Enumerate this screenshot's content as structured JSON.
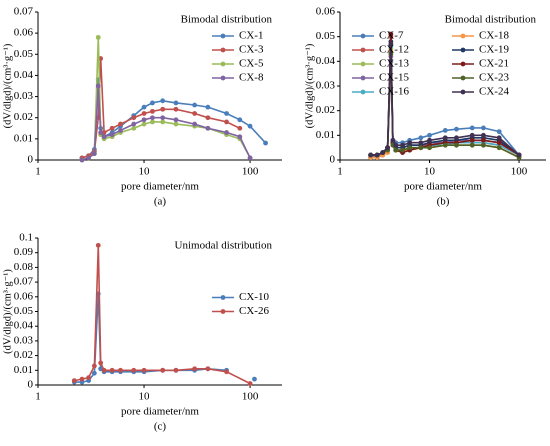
{
  "chart_data": [
    {
      "type": "line",
      "annotation": "Bimodal distribution",
      "xlabel": "pore diameter/nm",
      "ylabel": "(dV/dlgd)/(cm³·g⁻¹)",
      "caption": "(a)",
      "log_x": true,
      "xlim": [
        1,
        200
      ],
      "xticks": [
        1,
        10,
        100
      ],
      "ylim": [
        0,
        0.07
      ],
      "yticks": [
        0,
        0.01,
        0.02,
        0.03,
        0.04,
        0.05,
        0.06,
        0.07
      ],
      "legend": "upper right",
      "x": [
        2.6,
        3,
        3.4,
        3.7,
        3.9,
        4.2,
        5,
        6,
        8,
        10,
        12,
        15,
        20,
        30,
        40,
        60,
        80,
        100,
        140
      ],
      "series": [
        {
          "name": "CX-1",
          "color": "#4a7ebb",
          "values": [
            0.001,
            0.002,
            0.005,
            0.038,
            0.015,
            0.011,
            0.013,
            0.016,
            0.021,
            0.025,
            0.027,
            0.028,
            0.027,
            0.026,
            0.025,
            0.022,
            0.019,
            0.016,
            0.008
          ]
        },
        {
          "name": "CX-3",
          "color": "#c0504d",
          "values": [
            0.001,
            0.002,
            0.004,
            0.02,
            0.048,
            0.013,
            0.015,
            0.017,
            0.02,
            0.022,
            0.023,
            0.024,
            0.024,
            0.022,
            0.02,
            0.018,
            0.015,
            null,
            null
          ]
        },
        {
          "name": "CX-5",
          "color": "#9bbb59",
          "values": [
            0,
            0.001,
            0.003,
            0.058,
            0.012,
            0.01,
            0.011,
            0.013,
            0.015,
            0.017,
            0.018,
            0.018,
            0.017,
            0.016,
            0.015,
            0.012,
            0.01,
            0.001,
            null
          ]
        },
        {
          "name": "CX-8",
          "color": "#8064a2",
          "values": [
            0,
            0.001,
            0.003,
            0.035,
            0.013,
            0.011,
            0.012,
            0.014,
            0.017,
            0.019,
            0.02,
            0.02,
            0.019,
            0.017,
            0.015,
            0.013,
            0.011,
            0.001,
            null
          ]
        }
      ]
    },
    {
      "type": "line",
      "annotation": "Bimodal distribution",
      "xlabel": "pore diameter/nm",
      "ylabel": "(dV/dlgd)/(cm³·g⁻¹)",
      "caption": "(b)",
      "log_x": true,
      "xlim": [
        1,
        200
      ],
      "xticks": [
        1,
        10,
        100
      ],
      "ylim": [
        0,
        0.06
      ],
      "yticks": [
        0,
        0.01,
        0.02,
        0.03,
        0.04,
        0.05,
        0.06
      ],
      "legend": "upper right",
      "x": [
        2.2,
        2.6,
        3,
        3.4,
        3.7,
        3.9,
        4.2,
        5,
        6,
        8,
        10,
        15,
        20,
        30,
        40,
        60,
        100
      ],
      "series": [
        {
          "name": "CX-7",
          "color": "#4a7ebb",
          "values": [
            0.001,
            0.002,
            0.003,
            0.005,
            0.04,
            0.008,
            0.007,
            0.007,
            0.008,
            0.009,
            0.01,
            0.012,
            0.0125,
            0.013,
            0.013,
            0.0115,
            0.002
          ]
        },
        {
          "name": "CX-12",
          "color": "#c0504d",
          "values": [
            0.001,
            0.001,
            0.002,
            0.004,
            0.05,
            0.007,
            0.005,
            0.005,
            0.006,
            0.006,
            0.006,
            0.007,
            0.007,
            0.007,
            0.007,
            0.006,
            0.002
          ]
        },
        {
          "name": "CX-13",
          "color": "#9bbb59",
          "values": [
            0.001,
            0.001,
            0.002,
            0.004,
            0.045,
            0.006,
            0.004,
            0.004,
            0.004,
            0.005,
            0.005,
            0.006,
            0.006,
            0.006,
            0.006,
            0.005,
            0.001
          ]
        },
        {
          "name": "CX-15",
          "color": "#8064a2",
          "values": [
            0.001,
            0.002,
            0.002,
            0.004,
            0.042,
            0.007,
            0.005,
            0.005,
            0.006,
            0.006,
            0.007,
            0.007,
            0.008,
            0.008,
            0.008,
            0.007,
            0.002
          ]
        },
        {
          "name": "CX-16",
          "color": "#4bacc6",
          "values": [
            0.001,
            0.001,
            0.002,
            0.004,
            0.046,
            0.006,
            0.004,
            0.004,
            0.005,
            0.005,
            0.006,
            0.006,
            0.007,
            0.007,
            0.007,
            0.006,
            0.002
          ]
        },
        {
          "name": "CX-18",
          "color": "#f79646",
          "values": [
            0.001,
            0.001,
            0.002,
            0.003,
            0.044,
            0.006,
            0.004,
            0.004,
            0.004,
            0.005,
            0.005,
            0.006,
            0.006,
            0.006,
            0.006,
            0.005,
            0.001
          ]
        },
        {
          "name": "CX-19",
          "color": "#1f3864",
          "values": [
            0.002,
            0.002,
            0.003,
            0.005,
            0.048,
            0.007,
            0.005,
            0.005,
            0.006,
            0.006,
            0.007,
            0.008,
            0.008,
            0.009,
            0.009,
            0.008,
            0.002
          ]
        },
        {
          "name": "CX-21",
          "color": "#7b1b1b",
          "values": [
            0.002,
            0.002,
            0.003,
            0.005,
            0.051,
            0.007,
            0.004,
            0.003,
            0.004,
            0.005,
            0.006,
            0.007,
            0.007,
            0.008,
            0.008,
            0.007,
            0.002
          ]
        },
        {
          "name": "CX-23",
          "color": "#4f6228",
          "values": [
            0.002,
            0.002,
            0.003,
            0.004,
            0.043,
            0.006,
            0.004,
            0.004,
            0.005,
            0.005,
            0.005,
            0.006,
            0.006,
            0.006,
            0.006,
            0.005,
            0.001
          ]
        },
        {
          "name": "CX-24",
          "color": "#3f3151",
          "values": [
            0.002,
            0.002,
            0.003,
            0.005,
            0.047,
            0.008,
            0.006,
            0.006,
            0.007,
            0.007,
            0.008,
            0.009,
            0.009,
            0.01,
            0.01,
            0.009,
            0.002
          ]
        }
      ]
    },
    {
      "type": "line",
      "annotation": "Unimodal distribution",
      "xlabel": "pore diameter/nm",
      "ylabel": "(dV/dlgd)/(cm³·g⁻¹)",
      "caption": "(c)",
      "log_x": true,
      "xlim": [
        1,
        200
      ],
      "xticks": [
        1,
        10,
        100
      ],
      "ylim": [
        0,
        0.1
      ],
      "yticks": [
        0,
        0.01,
        0.02,
        0.03,
        0.04,
        0.05,
        0.06,
        0.07,
        0.08,
        0.09,
        0.1
      ],
      "legend": "center right",
      "x": [
        2.2,
        2.6,
        3,
        3.4,
        3.7,
        3.9,
        4.2,
        5,
        6,
        8,
        10,
        15,
        20,
        30,
        40,
        60,
        100,
        110
      ],
      "series": [
        {
          "name": "CX-10",
          "color": "#4a7ebb",
          "values": [
            0.002,
            0.002,
            0.003,
            0.008,
            0.062,
            0.011,
            0.009,
            0.009,
            0.009,
            0.009,
            0.009,
            0.01,
            0.01,
            0.01,
            0.011,
            0.01,
            null,
            0.004
          ]
        },
        {
          "name": "CX-26",
          "color": "#c0504d",
          "values": [
            0.003,
            0.004,
            0.005,
            0.013,
            0.095,
            0.015,
            0.01,
            0.01,
            0.01,
            0.01,
            0.01,
            0.01,
            0.01,
            0.011,
            0.011,
            0.009,
            0.001,
            null
          ]
        }
      ]
    }
  ]
}
